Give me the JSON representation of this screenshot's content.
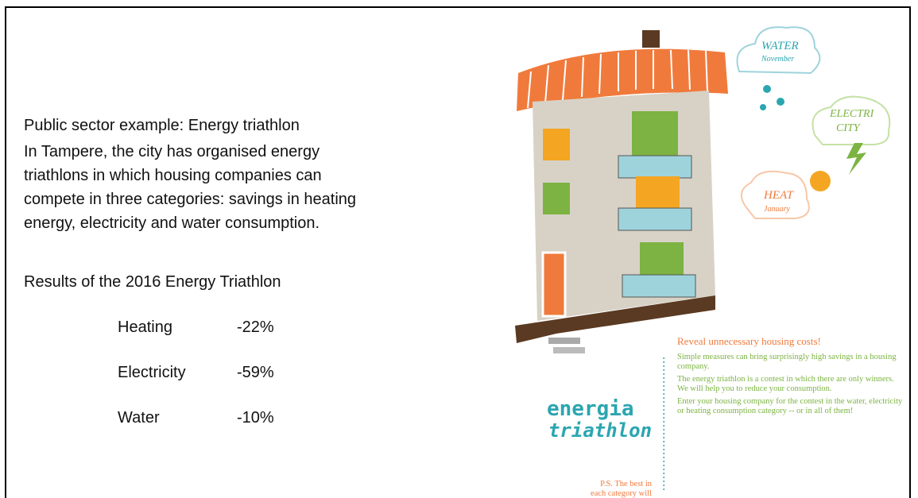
{
  "slide": {
    "heading": "Public sector example: Energy triathlon",
    "paragraph": "In Tampere, the city has organised energy triathlons in which housing companies can compete in three categories: savings in heating energy, electricity and water consumption.",
    "results_title": "Results of the 2016 Energy Triathlon",
    "results": [
      [
        "Heating",
        "-22%"
      ],
      [
        "Electricity",
        "-59%"
      ],
      [
        "Water",
        "-10%"
      ]
    ]
  },
  "illustration": {
    "water": {
      "title": "WATER",
      "month": "November"
    },
    "electricity": {
      "lines": [
        "ELECTRI",
        "CITY"
      ]
    },
    "heat": {
      "title": "HEAT",
      "month": "January"
    },
    "logo": {
      "line1": "energia",
      "line2": "triathlon"
    },
    "panel": {
      "title": "Reveal unnecessary housing costs!",
      "paragraphs": [
        "Simple measures can bring surprisingly high savings in a housing company.",
        "The energy triathlon is a contest in which there are only winners. We will help you to reduce your consumption.",
        "Enter your housing company for the contest in the water, electricity or heating consumption category -- or in all of them!"
      ]
    },
    "ps_lines": [
      "P.S. The best in",
      "each category will"
    ]
  }
}
